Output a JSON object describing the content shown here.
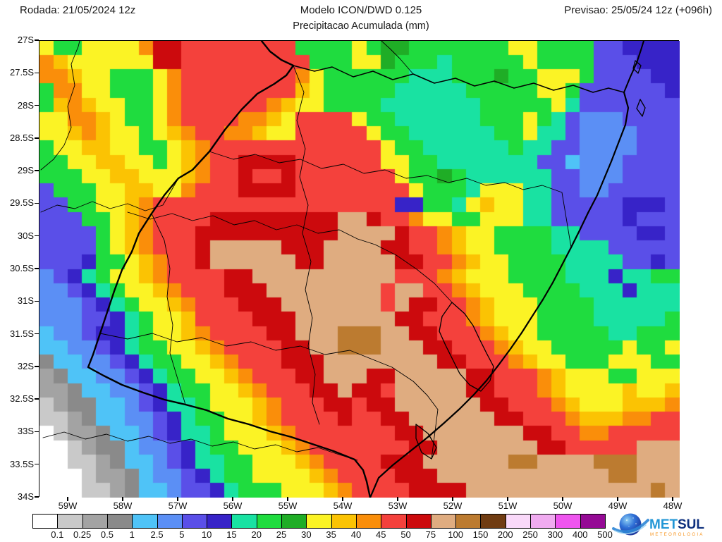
{
  "header": {
    "run_label": "Rodada: 21/05/2024  12z",
    "model_label": "Modelo  ICON/DWD  0.125",
    "forecast_label": "Previsao: 25/05/24  12z  (+096h)",
    "subtitle": "Precipitacao  Acumulada  (mm)"
  },
  "axes": {
    "lat_labels": [
      "27S",
      "27.5S",
      "28S",
      "28.5S",
      "29S",
      "29.5S",
      "30S",
      "30.5S",
      "31S",
      "31.5S",
      "32S",
      "32.5S",
      "33S",
      "33.5S",
      "34S"
    ],
    "lon_labels": [
      "59W",
      "58W",
      "57W",
      "56W",
      "55W",
      "54W",
      "53W",
      "52W",
      "51W",
      "50W",
      "49W",
      "48W"
    ]
  },
  "colorbar": {
    "values": [
      "0.1",
      "0.25",
      "0.5",
      "1",
      "2.5",
      "5",
      "10",
      "15",
      "20",
      "25",
      "30",
      "35",
      "40",
      "45",
      "50",
      "75",
      "100",
      "150",
      "200",
      "250",
      "300",
      "400",
      "500"
    ],
    "colors": [
      "#ffffff",
      "#c9c9c9",
      "#a3a3a3",
      "#8a8a8a",
      "#4fc3f7",
      "#5b8ff5",
      "#5a4fe8",
      "#3723c8",
      "#19e2a2",
      "#1fdc3f",
      "#1fad26",
      "#fbf325",
      "#fbc303",
      "#fa8e0a",
      "#f4413c",
      "#cc0a0d",
      "#dfac80",
      "#bc7b30",
      "#703c12",
      "#f9d9f9",
      "#f0abf0",
      "#ee55ee",
      "#950a95"
    ]
  },
  "logo": {
    "brand_primary": "MET",
    "brand_secondary": "SUL",
    "tagline": "METEOROLOGIA",
    "primary_color": "#2196d6",
    "secondary_color": "#0d2f7d",
    "tagline_color": "#f7941e"
  },
  "precip_grid": {
    "comment": "Filled-contour precipitation field, 45 cols x 32 rows, chars map to palette (mm classes per colorbar).",
    "palette": {
      "W": "#ffffff",
      "a": "#c9c9c9",
      "b": "#a3a3a3",
      "c": "#8a8a8a",
      "d": "#4fc3f7",
      "e": "#5b8ff5",
      "f": "#5a4fe8",
      "g": "#3723c8",
      "h": "#19e2a2",
      "i": "#1fdc3f",
      "j": "#1fad26",
      "k": "#fbf325",
      "l": "#fbc303",
      "m": "#fa8e0a",
      "n": "#f4413c",
      "o": "#cc0a0d",
      "p": "#dfac80",
      "q": "#bc7b30",
      "r": "#703c12"
    },
    "rows": [
      "kiikkkkmoonnnnnnnniiiikijjiiiiiiikkiiiiffgggg",
      "mlkkkkkkoonnnnnnnnniiikkjiiihiiiiikiiiifffggg",
      "mmlkkiiikmnnnnnnnnmkiiiiiihhhiiijiikkkiffffgg",
      "immkkiiikmnnnnnnnnlkiiiiihhhhhiiiiikkiffffffg",
      "ilmlkkiikmnnnnnnmlkkiiiihhhhhhhiiiiikhfffffff",
      "kkmmlkiikmnnnnmmlknnnnkiihhhhhhiiikihfeeeffff",
      "kklmlkkiklmnnmmlkknnnnnkiihhhhhhiikhhfeeeefff",
      "ikkllkkiiklmnnnnnnnnnnnnkiihhhhhhihhffeeeefff",
      "iikkllkkiklmnnoooonnnnnnkkiihhhhhhhffdeeeffff",
      "iiikkllkkklmnnonnonnnnnnnkiijihhhhhhffeeeffff",
      "fiiikkllkkmnnnoooonnnnnnnnkiiihkkkhhffeefffff",
      "ffiikklmnnnnnnnnnnnnnnnnnggiihklkkhhfffffgggf",
      "fffiiklmnnnnooooooooopponnmkkiikkkhhfffffgfff",
      "ffffiklmnnnoooooooooopppponnmlkkiiiihhffffggff",
      "ffffiklmnnnopppppoooppppoonnmlkkiiiihhhhfffff",
      "fffgiiklmnnoppppppooppppp oonnmlkkiiiihhhhffgf",
      "efghikklmnnnnoopppppppppp nnnmlkkkiiiihhhghhii",
      "eefghikklmnnnoooppppppppnppnnmlkkkiiiihhhghhh",
      "eeefghikklmnnnooopppppppnpoonnmlkkkiiiihhhhhh",
      "eeeffghikklnnnnooopppppppoonnnmlkkkiiiihhhhhi",
      "deefgghikklmnnnnoopppqqqppoonnnmlkkiiiiihhiii",
      "ddeefghiikklmnnnnooppqqqpppoonnnmlkkiiiiikiik",
      "cddeefghiikklmnnnoooppppppppoonnnmlkkiiikkkii",
      "bcddeefghiikklmnnnooppp oopppppoonnnmlkkkiikkk",
      "bbcddeefghiikklmnnnoopoonpppppoonnnmlkkkklkkl",
      "abccddefghhikkklmnnnoonooppppppoonnnmlkkklllm",
      "aabcddeefghiikklmnnnnonnooppppppoonnnmlllmmnn",
      "Wabbcddefghhikkklmnnnnnnnooppppppp oonnmmnnnnn",
      "WWabccdeefghiikkklmnnnnnnnoopppppppoonnnnnppp",
      "WWaabcddefghhiikkklmnnnnoooppppppqqppppqqqppp",
      "WWWabbcdeefghiikkkklmnnnnoooppppppppppppqqppp",
      "WWWaabcddeffghiiikkklmnnnnoooopppppppppppppqp"
    ]
  }
}
